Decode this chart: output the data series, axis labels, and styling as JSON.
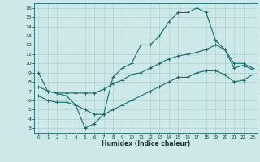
{
  "xlabel": "Humidex (Indice chaleur)",
  "bg_color": "#cde8e8",
  "line_color": "#1a6b6b",
  "grid_color": "#b0d0d0",
  "xlim": [
    -0.5,
    23.5
  ],
  "ylim": [
    2.5,
    16.5
  ],
  "xticks": [
    0,
    1,
    2,
    3,
    4,
    5,
    6,
    7,
    8,
    9,
    10,
    11,
    12,
    13,
    14,
    15,
    16,
    17,
    18,
    19,
    20,
    21,
    22,
    23
  ],
  "yticks": [
    3,
    4,
    5,
    6,
    7,
    8,
    9,
    10,
    11,
    12,
    13,
    14,
    15,
    16
  ],
  "line_top": {
    "x": [
      0,
      1,
      3,
      4,
      5,
      6,
      7,
      8,
      9,
      10,
      11,
      12,
      13,
      14,
      15,
      16,
      17,
      18,
      19,
      20,
      21,
      22,
      23
    ],
    "y": [
      9.0,
      7.0,
      6.5,
      5.5,
      3.0,
      3.5,
      4.5,
      8.5,
      9.5,
      10.0,
      12.0,
      12.0,
      13.0,
      14.5,
      15.5,
      15.5,
      16.0,
      15.5,
      12.5,
      11.5,
      10.0,
      10.0,
      9.5
    ]
  },
  "line_mid": {
    "x": [
      0,
      1,
      2,
      3,
      4,
      5,
      6,
      7,
      8,
      9,
      10,
      11,
      12,
      13,
      14,
      15,
      16,
      17,
      18,
      19,
      20,
      21,
      22,
      23
    ],
    "y": [
      7.5,
      7.0,
      6.8,
      6.8,
      6.8,
      6.8,
      6.8,
      7.2,
      7.8,
      8.2,
      8.8,
      9.0,
      9.5,
      10.0,
      10.5,
      10.8,
      11.0,
      11.2,
      11.5,
      12.0,
      11.5,
      9.5,
      9.8,
      9.3
    ]
  },
  "line_bot": {
    "x": [
      0,
      1,
      2,
      3,
      4,
      5,
      6,
      7,
      8,
      9,
      10,
      11,
      12,
      13,
      14,
      15,
      16,
      17,
      18,
      19,
      20,
      21,
      22,
      23
    ],
    "y": [
      6.5,
      6.0,
      5.8,
      5.8,
      5.5,
      5.0,
      4.5,
      4.5,
      5.0,
      5.5,
      6.0,
      6.5,
      7.0,
      7.5,
      8.0,
      8.5,
      8.5,
      9.0,
      9.2,
      9.2,
      8.8,
      8.0,
      8.2,
      8.8
    ]
  }
}
